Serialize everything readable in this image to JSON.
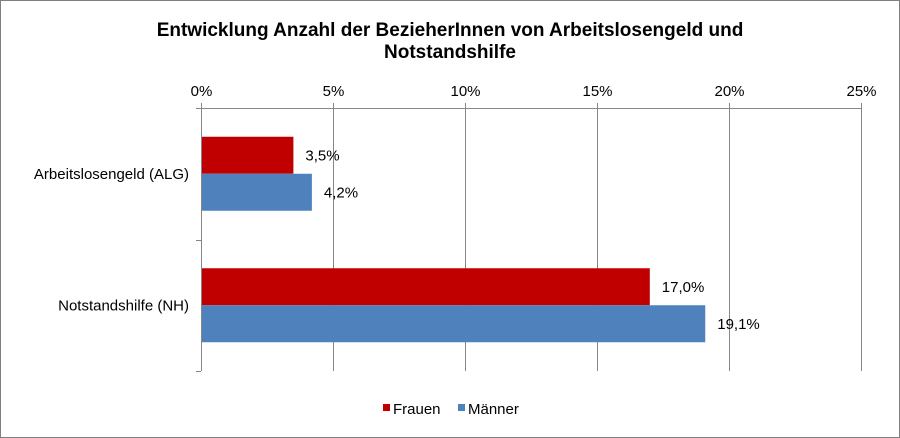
{
  "chart_data": {
    "type": "bar",
    "orientation": "horizontal",
    "title": "Entwicklung Anzahl der BezieherInnen von Arbeitslosengeld und Notstandshilfe",
    "title_lines": [
      "Entwicklung Anzahl der BezieherInnen von Arbeitslosengeld und",
      "Notstandshilfe"
    ],
    "categories": [
      "Arbeitslosengeld (ALG)",
      "Notstandshilfe (NH)"
    ],
    "series": [
      {
        "name": "Frauen",
        "color": "#c00000",
        "values": [
          3.5,
          17.0
        ],
        "labels": [
          "3,5%",
          "17,0%"
        ]
      },
      {
        "name": "Männer",
        "color": "#4f81bd",
        "values": [
          4.2,
          19.1
        ],
        "labels": [
          "4,2%",
          "19,1%"
        ]
      }
    ],
    "xlim": [
      0,
      25
    ],
    "x_ticks": [
      0,
      5,
      10,
      15,
      20,
      25
    ],
    "x_tick_labels": [
      "0%",
      "5%",
      "10%",
      "15%",
      "20%",
      "25%"
    ],
    "x_axis_position": "top",
    "grid": true,
    "legend_position": "bottom"
  }
}
